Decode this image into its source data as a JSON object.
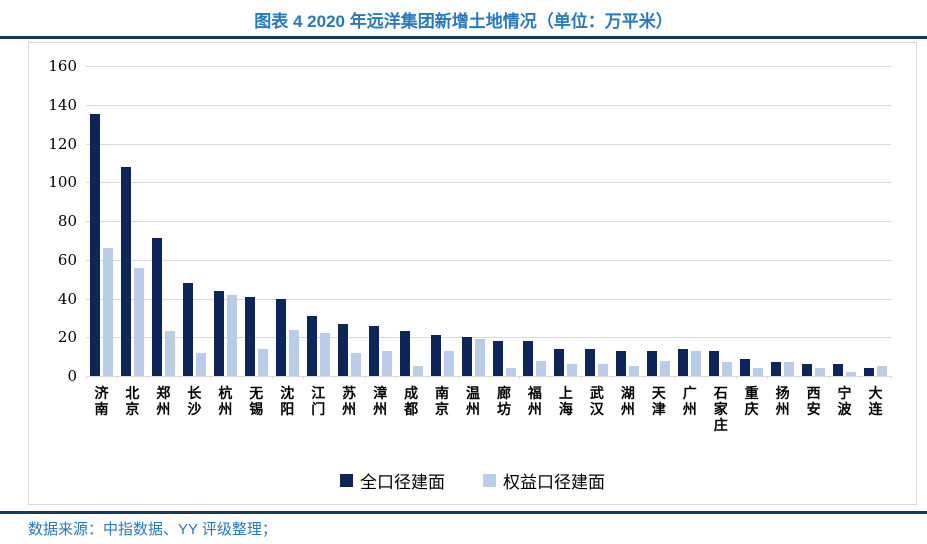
{
  "title": "图表 4 2020 年远洋集团新增土地情况（单位：万平米）",
  "source": {
    "text": "数据来源：中指数据、YY 评级整理；"
  },
  "colors": {
    "title_blue": "#2878BE",
    "rule_navy": "#17375E",
    "gridline": "#D9D9D9",
    "box_border": "#D9D9D9",
    "bar_full": "#0E255A",
    "bar_equity": "#BACCE8"
  },
  "chart_data": {
    "type": "bar",
    "title": "图表 4 2020 年远洋集团新增土地情况（单位：万平米）",
    "xlabel": "",
    "ylabel": "",
    "ylim": [
      0,
      160
    ],
    "ytick_step": 20,
    "yticks": [
      0,
      20,
      40,
      60,
      80,
      100,
      120,
      140,
      160
    ],
    "grid": true,
    "legend_position": "bottom",
    "categories": [
      "济南",
      "北京",
      "郑州",
      "长沙",
      "杭州",
      "无锡",
      "沈阳",
      "江门",
      "苏州",
      "漳州",
      "成都",
      "南京",
      "温州",
      "廊坊",
      "福州",
      "上海",
      "武汉",
      "湖州",
      "天津",
      "广州",
      "石家庄",
      "重庆",
      "扬州",
      "西安",
      "宁波",
      "大连"
    ],
    "series": [
      {
        "name": "全口径建面",
        "color": "#0E255A",
        "values": [
          135,
          108,
          71,
          48,
          44,
          41,
          40,
          31,
          27,
          26,
          23,
          21,
          20,
          18,
          18,
          14,
          14,
          13,
          13,
          14,
          13,
          9,
          7,
          6,
          6,
          4
        ]
      },
      {
        "name": "权益口径建面",
        "color": "#BACCE8",
        "values": [
          66,
          56,
          23,
          12,
          42,
          14,
          24,
          22,
          12,
          13,
          5,
          13,
          19,
          4,
          8,
          6,
          6,
          5,
          8,
          13,
          7,
          4,
          7,
          4,
          2,
          5
        ]
      }
    ]
  }
}
